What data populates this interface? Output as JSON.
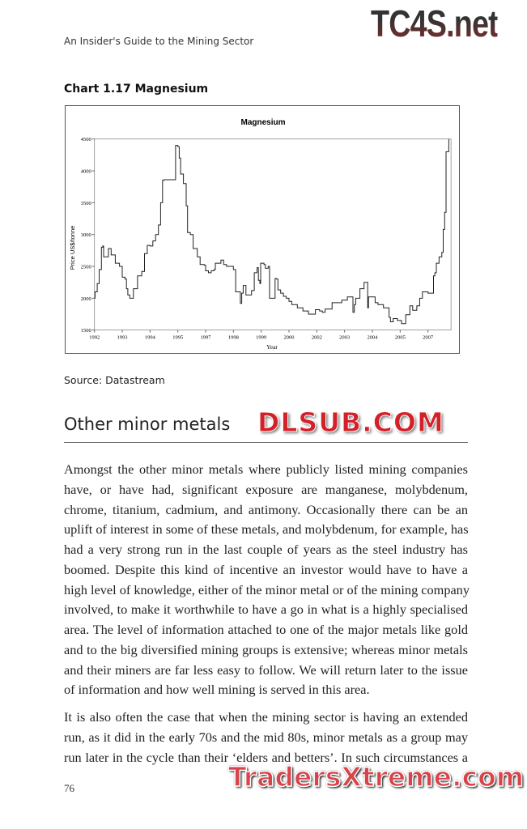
{
  "header": {
    "running_head": "An Insider's Guide to the Mining Sector"
  },
  "watermarks": {
    "top": "TC4S.net",
    "middle": "DLSUB.COM",
    "bottom": "TradersXtreme.com"
  },
  "chart_caption": "Chart 1.17 Magnesium",
  "chart_data": {
    "type": "line",
    "title": "Magnesium",
    "xlabel": "Year",
    "ylabel": "Price US$/tonne",
    "ylim": [
      1500,
      4500
    ],
    "yticks": [
      "1500",
      "2000",
      "2500",
      "3000",
      "3500",
      "4000",
      "4500"
    ],
    "xticks": [
      "1992",
      "1993",
      "1994",
      "1995",
      "1997",
      "1998",
      "1999",
      "2000",
      "2002",
      "2003",
      "2004",
      "2005",
      "2007"
    ],
    "grid": false,
    "legend": "none",
    "line_style": "step",
    "color": "#222222",
    "series": [
      {
        "points": [
          [
            0,
            2000
          ],
          [
            0.02,
            2100
          ],
          [
            0.1,
            2230
          ],
          [
            0.17,
            2450
          ],
          [
            0.25,
            2800
          ],
          [
            0.3,
            2820
          ],
          [
            0.33,
            2650
          ],
          [
            0.45,
            2650
          ],
          [
            0.5,
            2780
          ],
          [
            0.6,
            2680
          ],
          [
            0.75,
            2550
          ],
          [
            0.9,
            2500
          ],
          [
            1.0,
            2330
          ],
          [
            1.1,
            2300
          ],
          [
            1.15,
            2150
          ],
          [
            1.2,
            2050
          ],
          [
            1.27,
            2000
          ],
          [
            1.4,
            2150
          ],
          [
            1.55,
            2350
          ],
          [
            1.7,
            2420
          ],
          [
            1.8,
            2700
          ],
          [
            1.9,
            2830
          ],
          [
            2.0,
            2820
          ],
          [
            2.1,
            2900
          ],
          [
            2.2,
            3000
          ],
          [
            2.3,
            3150
          ],
          [
            2.38,
            3500
          ],
          [
            2.45,
            3850
          ],
          [
            2.5,
            3860
          ],
          [
            2.9,
            3860
          ],
          [
            2.92,
            4400
          ],
          [
            3.0,
            4380
          ],
          [
            3.05,
            4200
          ],
          [
            3.1,
            3950
          ],
          [
            3.2,
            3800
          ],
          [
            3.3,
            3450
          ],
          [
            3.35,
            3030
          ],
          [
            3.45,
            3000
          ],
          [
            3.55,
            2780
          ],
          [
            3.7,
            2650
          ],
          [
            3.8,
            2530
          ],
          [
            3.95,
            2520
          ],
          [
            4.0,
            2430
          ],
          [
            4.1,
            2400
          ],
          [
            4.2,
            2430
          ],
          [
            4.3,
            2450
          ],
          [
            4.35,
            2550
          ],
          [
            4.45,
            2550
          ],
          [
            4.55,
            2600
          ],
          [
            4.65,
            2530
          ],
          [
            4.75,
            2500
          ],
          [
            4.9,
            2500
          ],
          [
            5.0,
            2450
          ],
          [
            5.08,
            2100
          ],
          [
            5.2,
            2100
          ],
          [
            5.25,
            1920
          ],
          [
            5.3,
            2080
          ],
          [
            5.35,
            2200
          ],
          [
            5.45,
            2050
          ],
          [
            5.55,
            2050
          ],
          [
            5.65,
            2120
          ],
          [
            5.75,
            2400
          ],
          [
            5.85,
            2480
          ],
          [
            5.9,
            2280
          ],
          [
            5.95,
            2230
          ],
          [
            5.98,
            2550
          ],
          [
            6.1,
            2530
          ],
          [
            6.15,
            2470
          ],
          [
            6.25,
            2500
          ],
          [
            6.3,
            2000
          ],
          [
            6.45,
            2000
          ],
          [
            6.5,
            2310
          ],
          [
            6.55,
            2300
          ],
          [
            6.6,
            2130
          ],
          [
            6.7,
            2080
          ],
          [
            6.8,
            2030
          ],
          [
            6.9,
            2000
          ],
          [
            7.0,
            1950
          ],
          [
            7.1,
            1900
          ],
          [
            7.3,
            1850
          ],
          [
            7.5,
            1800
          ],
          [
            7.7,
            1750
          ],
          [
            7.9,
            1750
          ],
          [
            7.95,
            1820
          ],
          [
            8.1,
            1800
          ],
          [
            8.2,
            1780
          ],
          [
            8.3,
            1830
          ],
          [
            8.5,
            1830
          ],
          [
            8.55,
            1930
          ],
          [
            8.85,
            1930
          ],
          [
            8.9,
            1970
          ],
          [
            9.0,
            1970
          ],
          [
            9.1,
            2020
          ],
          [
            9.25,
            2020
          ],
          [
            9.3,
            1780
          ],
          [
            9.35,
            1900
          ],
          [
            9.4,
            2000
          ],
          [
            9.5,
            2000
          ],
          [
            9.55,
            2150
          ],
          [
            9.65,
            2150
          ],
          [
            9.7,
            2250
          ],
          [
            9.8,
            2250
          ],
          [
            9.83,
            1850
          ],
          [
            9.86,
            2020
          ],
          [
            10.0,
            2020
          ],
          [
            10.1,
            1930
          ],
          [
            10.2,
            1900
          ],
          [
            10.4,
            1850
          ],
          [
            10.55,
            1850
          ],
          [
            10.6,
            1700
          ],
          [
            10.65,
            1630
          ],
          [
            10.75,
            1680
          ],
          [
            10.9,
            1650
          ],
          [
            11.05,
            1600
          ],
          [
            11.1,
            1600
          ],
          [
            11.2,
            1740
          ],
          [
            11.3,
            1740
          ],
          [
            11.35,
            1880
          ],
          [
            11.45,
            1810
          ],
          [
            11.55,
            1810
          ],
          [
            11.6,
            1880
          ],
          [
            11.7,
            2000
          ],
          [
            11.8,
            2100
          ],
          [
            12.0,
            2080
          ],
          [
            12.15,
            2080
          ],
          [
            12.2,
            2350
          ],
          [
            12.25,
            2400
          ],
          [
            12.3,
            2550
          ],
          [
            12.4,
            2650
          ],
          [
            12.5,
            2720
          ],
          [
            12.55,
            3080
          ],
          [
            12.6,
            3350
          ],
          [
            12.65,
            4300
          ],
          [
            12.7,
            4300
          ],
          [
            12.75,
            4500
          ]
        ]
      }
    ]
  },
  "source": "Source: Datastream",
  "section_title": "Other minor metals",
  "body": {
    "paragraph1": [
      "Amongst the other minor metals where publicly listed mining companies",
      "have, or have had, significant exposure are manganese, molybdenum,",
      "chrome, titanium, cadmium, and antimony. Occasionally there can be an",
      "uplift of interest in some of these metals, and molybdenum, for example, has",
      "had a very strong run in the last couple of years as the steel industry has",
      "boomed. Despite this kind of incentive an investor would have to have a",
      "high level of knowledge, either of the minor metal or of the mining company",
      "involved, to make it worthwhile to have a go in what is a highly specialised",
      "area. The level of information attached to one of the major metals like gold",
      "and to the big diversified mining groups is extensive; whereas minor metals",
      "and their miners are far less easy to follow. We will return later to the issue",
      "of information and how well mining is served in this area."
    ],
    "paragraph2": [
      "It is also often the case that when the mining sector is having an extended",
      "run, as it did in the early 70s and the mid 80s, minor metals as a group may",
      "run later in the cycle than their ‘elders and betters’. In such circumstances a"
    ]
  },
  "page_number": "76"
}
